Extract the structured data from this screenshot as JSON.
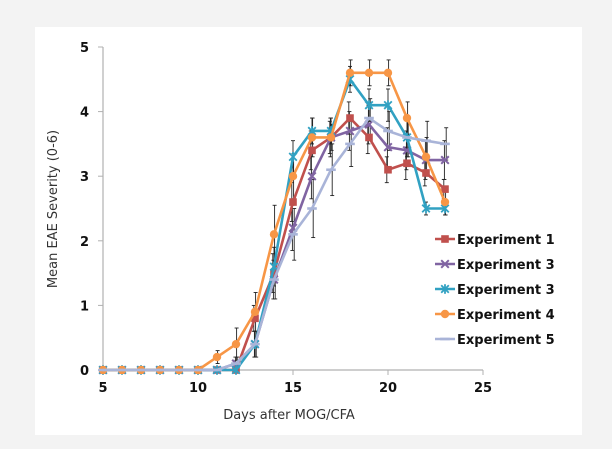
{
  "chart_data": {
    "type": "line",
    "title": "",
    "xlabel": "Days after MOG/CFA",
    "ylabel": "Mean EAE Severity (0-6)",
    "xlim": [
      5,
      25
    ],
    "ylim": [
      0,
      5
    ],
    "xticks": [
      5,
      10,
      15,
      20,
      25
    ],
    "yticks": [
      0,
      1,
      2,
      3,
      4,
      5
    ],
    "grid": false,
    "legend_position": "right",
    "series": [
      {
        "name": "Experiment 1",
        "color": "#c0504d",
        "marker": "square",
        "x": [
          5,
          6,
          7,
          8,
          9,
          10,
          11,
          12,
          13,
          14,
          15,
          16,
          17,
          18,
          19,
          20,
          21,
          22,
          23
        ],
        "y": [
          0,
          0,
          0,
          0,
          0,
          0,
          0,
          0,
          0.8,
          1.5,
          2.6,
          3.4,
          3.6,
          3.9,
          3.6,
          3.1,
          3.2,
          3.05,
          2.8
        ],
        "error": [
          0,
          0,
          0,
          0,
          0,
          0,
          0,
          0,
          0.2,
          0.3,
          0.3,
          0.3,
          0.25,
          0.25,
          0.25,
          0.2,
          0.25,
          0.2,
          0.15
        ]
      },
      {
        "name": "Experiment 3",
        "color": "#8064a2",
        "marker": "x",
        "x": [
          5,
          6,
          7,
          8,
          9,
          10,
          11,
          12,
          13,
          14,
          15,
          16,
          17,
          18,
          19,
          20,
          21,
          22,
          23
        ],
        "y": [
          0,
          0,
          0,
          0,
          0,
          0,
          0,
          0.1,
          0.4,
          1.4,
          2.2,
          3.0,
          3.6,
          3.7,
          3.8,
          3.45,
          3.4,
          3.25,
          3.25
        ],
        "error": [
          0,
          0,
          0,
          0,
          0,
          0,
          0,
          0.1,
          0.2,
          0.3,
          0.35,
          0.35,
          0.3,
          0.3,
          0.3,
          0.3,
          0.3,
          0.3,
          0.3
        ]
      },
      {
        "name": "Experiment 3",
        "color": "#31a1c2",
        "marker": "star",
        "x": [
          5,
          6,
          7,
          8,
          9,
          10,
          11,
          12,
          13,
          14,
          15,
          16,
          17,
          18,
          19,
          20,
          21,
          22,
          23
        ],
        "y": [
          0,
          0,
          0,
          0,
          0,
          0,
          0,
          0,
          0.4,
          1.6,
          3.3,
          3.7,
          3.7,
          4.5,
          4.1,
          4.1,
          3.6,
          2.5,
          2.5
        ],
        "error": [
          0,
          0,
          0,
          0,
          0,
          0,
          0,
          0,
          0.2,
          0.3,
          0.25,
          0.2,
          0.2,
          0.2,
          0.25,
          0.25,
          0.3,
          0.1,
          0.1
        ]
      },
      {
        "name": "Experiment 4",
        "color": "#f79646",
        "marker": "circle",
        "x": [
          5,
          6,
          7,
          8,
          9,
          10,
          11,
          12,
          13,
          14,
          15,
          16,
          17,
          18,
          19,
          20,
          21,
          22,
          23
        ],
        "y": [
          0,
          0,
          0,
          0,
          0,
          0,
          0.2,
          0.4,
          0.9,
          2.1,
          3.0,
          3.6,
          3.6,
          4.6,
          4.6,
          4.6,
          3.9,
          3.3,
          2.6
        ],
        "error": [
          0,
          0,
          0,
          0,
          0,
          0,
          0.1,
          0.25,
          0.3,
          0.45,
          0.35,
          0.3,
          0.2,
          0.2,
          0.2,
          0.2,
          0.25,
          0.3,
          0.2
        ]
      },
      {
        "name": "Experiment 5",
        "color": "#a9b4d8",
        "marker": "dash",
        "x": [
          5,
          6,
          7,
          8,
          9,
          10,
          11,
          12,
          13,
          14,
          15,
          16,
          17,
          18,
          19,
          20,
          21,
          22,
          23
        ],
        "y": [
          0,
          0,
          0,
          0,
          0,
          0,
          0,
          0.1,
          0.4,
          1.4,
          2.1,
          2.5,
          3.1,
          3.5,
          3.9,
          3.7,
          3.6,
          3.55,
          3.5
        ],
        "error": [
          0,
          0,
          0,
          0,
          0,
          0,
          0,
          0.1,
          0.2,
          0.3,
          0.4,
          0.45,
          0.4,
          0.35,
          0.3,
          0.3,
          0.3,
          0.3,
          0.25
        ]
      }
    ]
  }
}
